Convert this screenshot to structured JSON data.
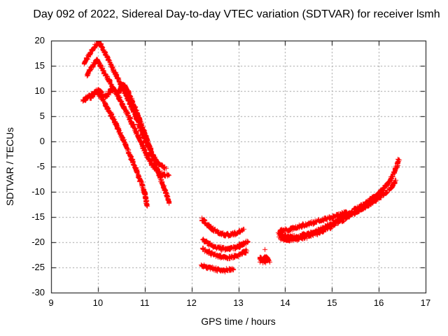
{
  "chart_data": {
    "type": "scatter",
    "title": "Day 092 of 2022, Sidereal Day-to-day VTEC variation (SDTVAR) for receiver lsmh",
    "xlabel": "GPS time / hours",
    "ylabel": "SDTVAR / TECUs",
    "xlim": [
      9,
      17
    ],
    "ylim": [
      -30,
      20
    ],
    "xticks": [
      9,
      10,
      11,
      12,
      13,
      14,
      15,
      16,
      17
    ],
    "yticks": [
      20,
      15,
      10,
      5,
      0,
      -5,
      -10,
      -15,
      -20,
      -25,
      -30
    ],
    "grid": true,
    "grid_style": "dotted",
    "grid_color": "#9c9c9c",
    "border_color": "#000000",
    "legend": "none",
    "marker": "plus",
    "marker_color": "#ff0000",
    "series": [
      {
        "name": "morning-descending-band-1",
        "type": "band",
        "points": [
          [
            9.7,
            15.4
          ],
          [
            9.78,
            16.8
          ],
          [
            9.86,
            18.0
          ],
          [
            9.94,
            19.0
          ],
          [
            10.01,
            19.6
          ],
          [
            10.06,
            19.1
          ],
          [
            10.13,
            17.9
          ],
          [
            10.25,
            15.7
          ],
          [
            10.4,
            12.9
          ],
          [
            10.55,
            10.1
          ],
          [
            10.7,
            7.1
          ],
          [
            10.85,
            3.9
          ],
          [
            11.0,
            0.5
          ],
          [
            11.15,
            -2.5
          ],
          [
            11.3,
            -4.4
          ],
          [
            11.45,
            -5.4
          ]
        ]
      },
      {
        "name": "morning-descending-band-2",
        "type": "band",
        "points": [
          [
            9.76,
            13.2
          ],
          [
            9.83,
            14.4
          ],
          [
            9.9,
            15.4
          ],
          [
            9.97,
            16.1
          ],
          [
            10.03,
            15.4
          ],
          [
            10.1,
            14.2
          ],
          [
            10.22,
            12.3
          ],
          [
            10.37,
            9.9
          ],
          [
            10.52,
            7.4
          ],
          [
            10.67,
            4.7
          ],
          [
            10.82,
            1.8
          ],
          [
            10.97,
            -1.3
          ],
          [
            11.12,
            -4.2
          ],
          [
            11.27,
            -5.9
          ],
          [
            11.4,
            -6.5
          ],
          [
            11.52,
            -6.8
          ]
        ]
      },
      {
        "name": "morning-descending-band-3",
        "type": "band",
        "points": [
          [
            9.83,
            8.6
          ],
          [
            9.9,
            9.4
          ],
          [
            9.97,
            10.1
          ],
          [
            10.02,
            10.3
          ],
          [
            10.08,
            9.6
          ],
          [
            10.14,
            8.9
          ],
          [
            10.2,
            9.2
          ],
          [
            10.28,
            10.6
          ],
          [
            10.35,
            10.1
          ],
          [
            10.42,
            9.2
          ],
          [
            10.49,
            10.9
          ],
          [
            10.56,
            11.3
          ],
          [
            10.64,
            9.9
          ],
          [
            10.78,
            6.8
          ],
          [
            10.92,
            3.5
          ],
          [
            11.06,
            0.0
          ],
          [
            11.2,
            -3.8
          ],
          [
            11.34,
            -7.6
          ],
          [
            11.45,
            -10.3
          ],
          [
            11.52,
            -12.1
          ]
        ]
      },
      {
        "name": "morning-descending-band-4",
        "type": "band",
        "points": [
          [
            9.68,
            8.0
          ],
          [
            9.76,
            8.9
          ],
          [
            9.85,
            9.5
          ],
          [
            9.93,
            9.8
          ],
          [
            10.0,
            9.5
          ],
          [
            10.08,
            8.5
          ],
          [
            10.2,
            6.6
          ],
          [
            10.35,
            4.0
          ],
          [
            10.5,
            1.1
          ],
          [
            10.65,
            -2.0
          ],
          [
            10.8,
            -5.3
          ],
          [
            10.92,
            -8.2
          ],
          [
            11.0,
            -10.4
          ],
          [
            11.04,
            -12.9
          ]
        ]
      },
      {
        "name": "midday-band-1",
        "type": "band",
        "points": [
          [
            12.22,
            -15.3
          ],
          [
            12.32,
            -16.4
          ],
          [
            12.44,
            -17.3
          ],
          [
            12.58,
            -18.1
          ],
          [
            12.72,
            -18.5
          ],
          [
            12.86,
            -18.4
          ],
          [
            13.0,
            -17.9
          ],
          [
            13.11,
            -17.4
          ]
        ]
      },
      {
        "name": "midday-band-2",
        "type": "band",
        "points": [
          [
            12.24,
            -19.5
          ],
          [
            12.36,
            -20.3
          ],
          [
            12.5,
            -20.9
          ],
          [
            12.65,
            -21.2
          ],
          [
            12.8,
            -21.3
          ],
          [
            12.95,
            -21.0
          ],
          [
            13.08,
            -20.4
          ],
          [
            13.21,
            -19.9
          ]
        ]
      },
      {
        "name": "midday-band-3",
        "type": "band",
        "points": [
          [
            12.22,
            -21.1
          ],
          [
            12.35,
            -21.9
          ],
          [
            12.5,
            -22.5
          ],
          [
            12.65,
            -22.9
          ],
          [
            12.8,
            -23.0
          ],
          [
            12.95,
            -22.7
          ],
          [
            13.08,
            -22.1
          ],
          [
            13.18,
            -21.7
          ]
        ]
      },
      {
        "name": "midday-band-4",
        "type": "band",
        "points": [
          [
            12.21,
            -24.5
          ],
          [
            12.33,
            -24.9
          ],
          [
            12.47,
            -25.2
          ],
          [
            12.62,
            -25.5
          ],
          [
            12.75,
            -25.5
          ],
          [
            12.9,
            -25.2
          ]
        ]
      },
      {
        "name": "outlier-cluster",
        "type": "blob",
        "center": [
          13.55,
          -23.4
        ],
        "spread": [
          0.12,
          0.8
        ],
        "n": 70
      },
      {
        "name": "outlier-point",
        "type": "points",
        "points": [
          [
            13.56,
            -21.4
          ]
        ]
      },
      {
        "name": "afternoon-rising-band-1",
        "type": "band",
        "points": [
          [
            13.85,
            -18.1
          ],
          [
            13.95,
            -18.6
          ],
          [
            14.1,
            -18.9
          ],
          [
            14.3,
            -18.8
          ],
          [
            14.5,
            -18.3
          ],
          [
            14.7,
            -17.6
          ],
          [
            14.9,
            -16.7
          ],
          [
            15.1,
            -15.7
          ],
          [
            15.3,
            -14.6
          ],
          [
            15.5,
            -13.4
          ],
          [
            15.7,
            -12.2
          ],
          [
            15.9,
            -10.9
          ],
          [
            16.05,
            -9.7
          ],
          [
            16.2,
            -8.2
          ],
          [
            16.3,
            -6.5
          ],
          [
            16.38,
            -4.8
          ],
          [
            16.42,
            -3.4
          ]
        ]
      },
      {
        "name": "afternoon-rising-band-2",
        "type": "band",
        "points": [
          [
            13.88,
            -17.7
          ],
          [
            14.02,
            -17.5
          ],
          [
            14.18,
            -17.1
          ],
          [
            14.36,
            -16.6
          ],
          [
            14.55,
            -16.1
          ],
          [
            14.75,
            -15.6
          ],
          [
            14.95,
            -15.1
          ],
          [
            15.15,
            -14.5
          ],
          [
            15.32,
            -13.9
          ]
        ]
      },
      {
        "name": "afternoon-rising-band-3",
        "type": "band",
        "points": [
          [
            13.87,
            -19.1
          ],
          [
            14.05,
            -19.5
          ],
          [
            14.25,
            -19.3
          ],
          [
            14.45,
            -18.8
          ],
          [
            14.65,
            -18.2
          ],
          [
            14.85,
            -17.4
          ],
          [
            15.05,
            -16.4
          ],
          [
            15.25,
            -15.4
          ],
          [
            15.45,
            -14.3
          ],
          [
            15.65,
            -13.2
          ],
          [
            15.85,
            -12.1
          ],
          [
            16.0,
            -11.1
          ],
          [
            16.15,
            -10.0
          ],
          [
            16.28,
            -8.8
          ],
          [
            16.36,
            -7.7
          ]
        ]
      }
    ]
  }
}
